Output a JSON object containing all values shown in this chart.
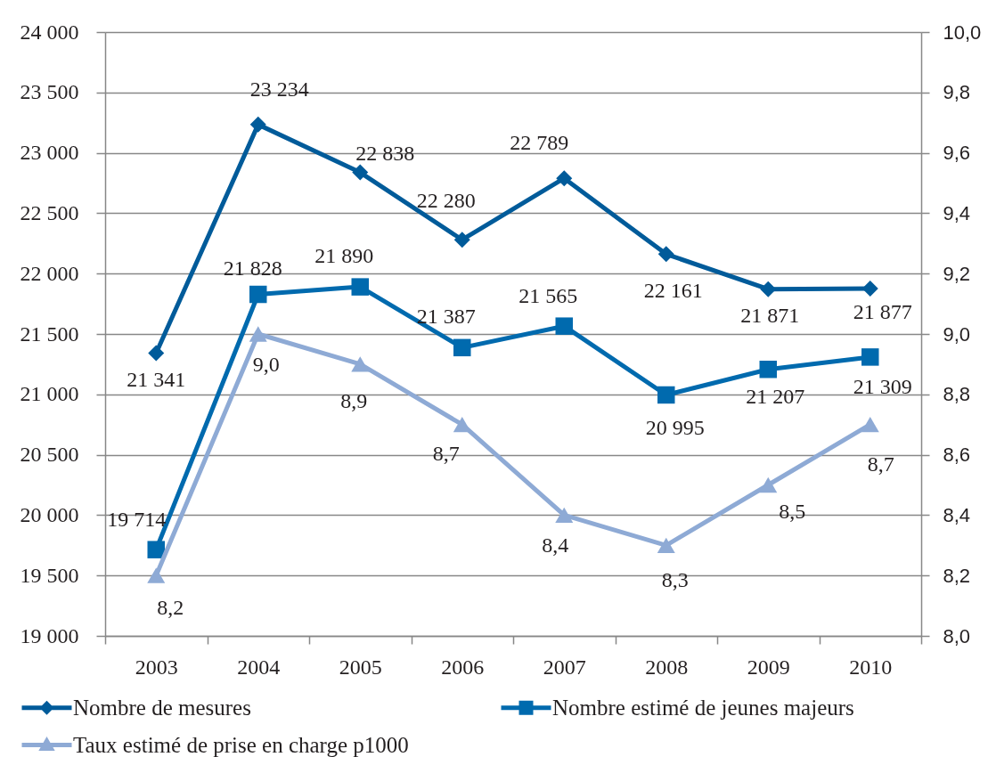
{
  "chart_data": {
    "type": "line",
    "categories": [
      "2003",
      "2004",
      "2005",
      "2006",
      "2007",
      "2008",
      "2009",
      "2010"
    ],
    "ylim": [
      19000,
      24000
    ],
    "yticks": [
      {
        "value": 19000,
        "label": "19 000"
      },
      {
        "value": 19500,
        "label": "19 500"
      },
      {
        "value": 20000,
        "label": "20 000"
      },
      {
        "value": 20500,
        "label": "20 500"
      },
      {
        "value": 21000,
        "label": "21 000"
      },
      {
        "value": 21500,
        "label": "21 500"
      },
      {
        "value": 22000,
        "label": "22 000"
      },
      {
        "value": 22500,
        "label": "22 500"
      },
      {
        "value": 23000,
        "label": "23 000"
      },
      {
        "value": 23500,
        "label": "23 500"
      },
      {
        "value": 24000,
        "label": "24 000"
      }
    ],
    "y2lim": [
      8.0,
      10.0
    ],
    "y2ticks": [
      {
        "value": 8.0,
        "label": "8,0"
      },
      {
        "value": 8.2,
        "label": "8,2"
      },
      {
        "value": 8.4,
        "label": "8,4"
      },
      {
        "value": 8.6,
        "label": "8,6"
      },
      {
        "value": 8.8,
        "label": "8,8"
      },
      {
        "value": 9.0,
        "label": "9,0"
      },
      {
        "value": 9.2,
        "label": "9,2"
      },
      {
        "value": 9.4,
        "label": "9,4"
      },
      {
        "value": 9.6,
        "label": "9,6"
      },
      {
        "value": 9.8,
        "label": "9,8"
      },
      {
        "value": 10.0,
        "label": "10,0"
      }
    ],
    "grid": "y",
    "legend": "bottom",
    "line_style": "solid",
    "series": [
      {
        "name": "Nombre de mesures",
        "color": "#005b9a",
        "marker": "diamond",
        "values": [
          21341,
          23234,
          22838,
          22280,
          22789,
          22161,
          21871,
          21877
        ],
        "value_labels": [
          "21 341",
          "23 234",
          "22 838",
          "22 280",
          "22 789",
          "22 161",
          "21 871",
          "21 877"
        ]
      },
      {
        "name": "Nombre estimé de jeunes majeurs",
        "color": "#006aae",
        "marker": "square",
        "values": [
          19714,
          21828,
          21890,
          21387,
          21565,
          20995,
          21207,
          21309
        ],
        "value_labels": [
          "19 714",
          "21 828",
          "21 890",
          "21 387",
          "21 565",
          "20 995",
          "21 207",
          "21 309"
        ]
      },
      {
        "name": "Taux estimé de prise en charge  p1000",
        "color": "#8eaad5",
        "marker": "triangle",
        "axis": "y2",
        "values": [
          8.2,
          9.0,
          8.9,
          8.7,
          8.4,
          8.3,
          8.5,
          8.7
        ],
        "value_labels": [
          "8,2",
          "9,0",
          "8,9",
          "8,7",
          "8,4",
          "8,3",
          "8,5",
          "8,7"
        ]
      }
    ]
  }
}
